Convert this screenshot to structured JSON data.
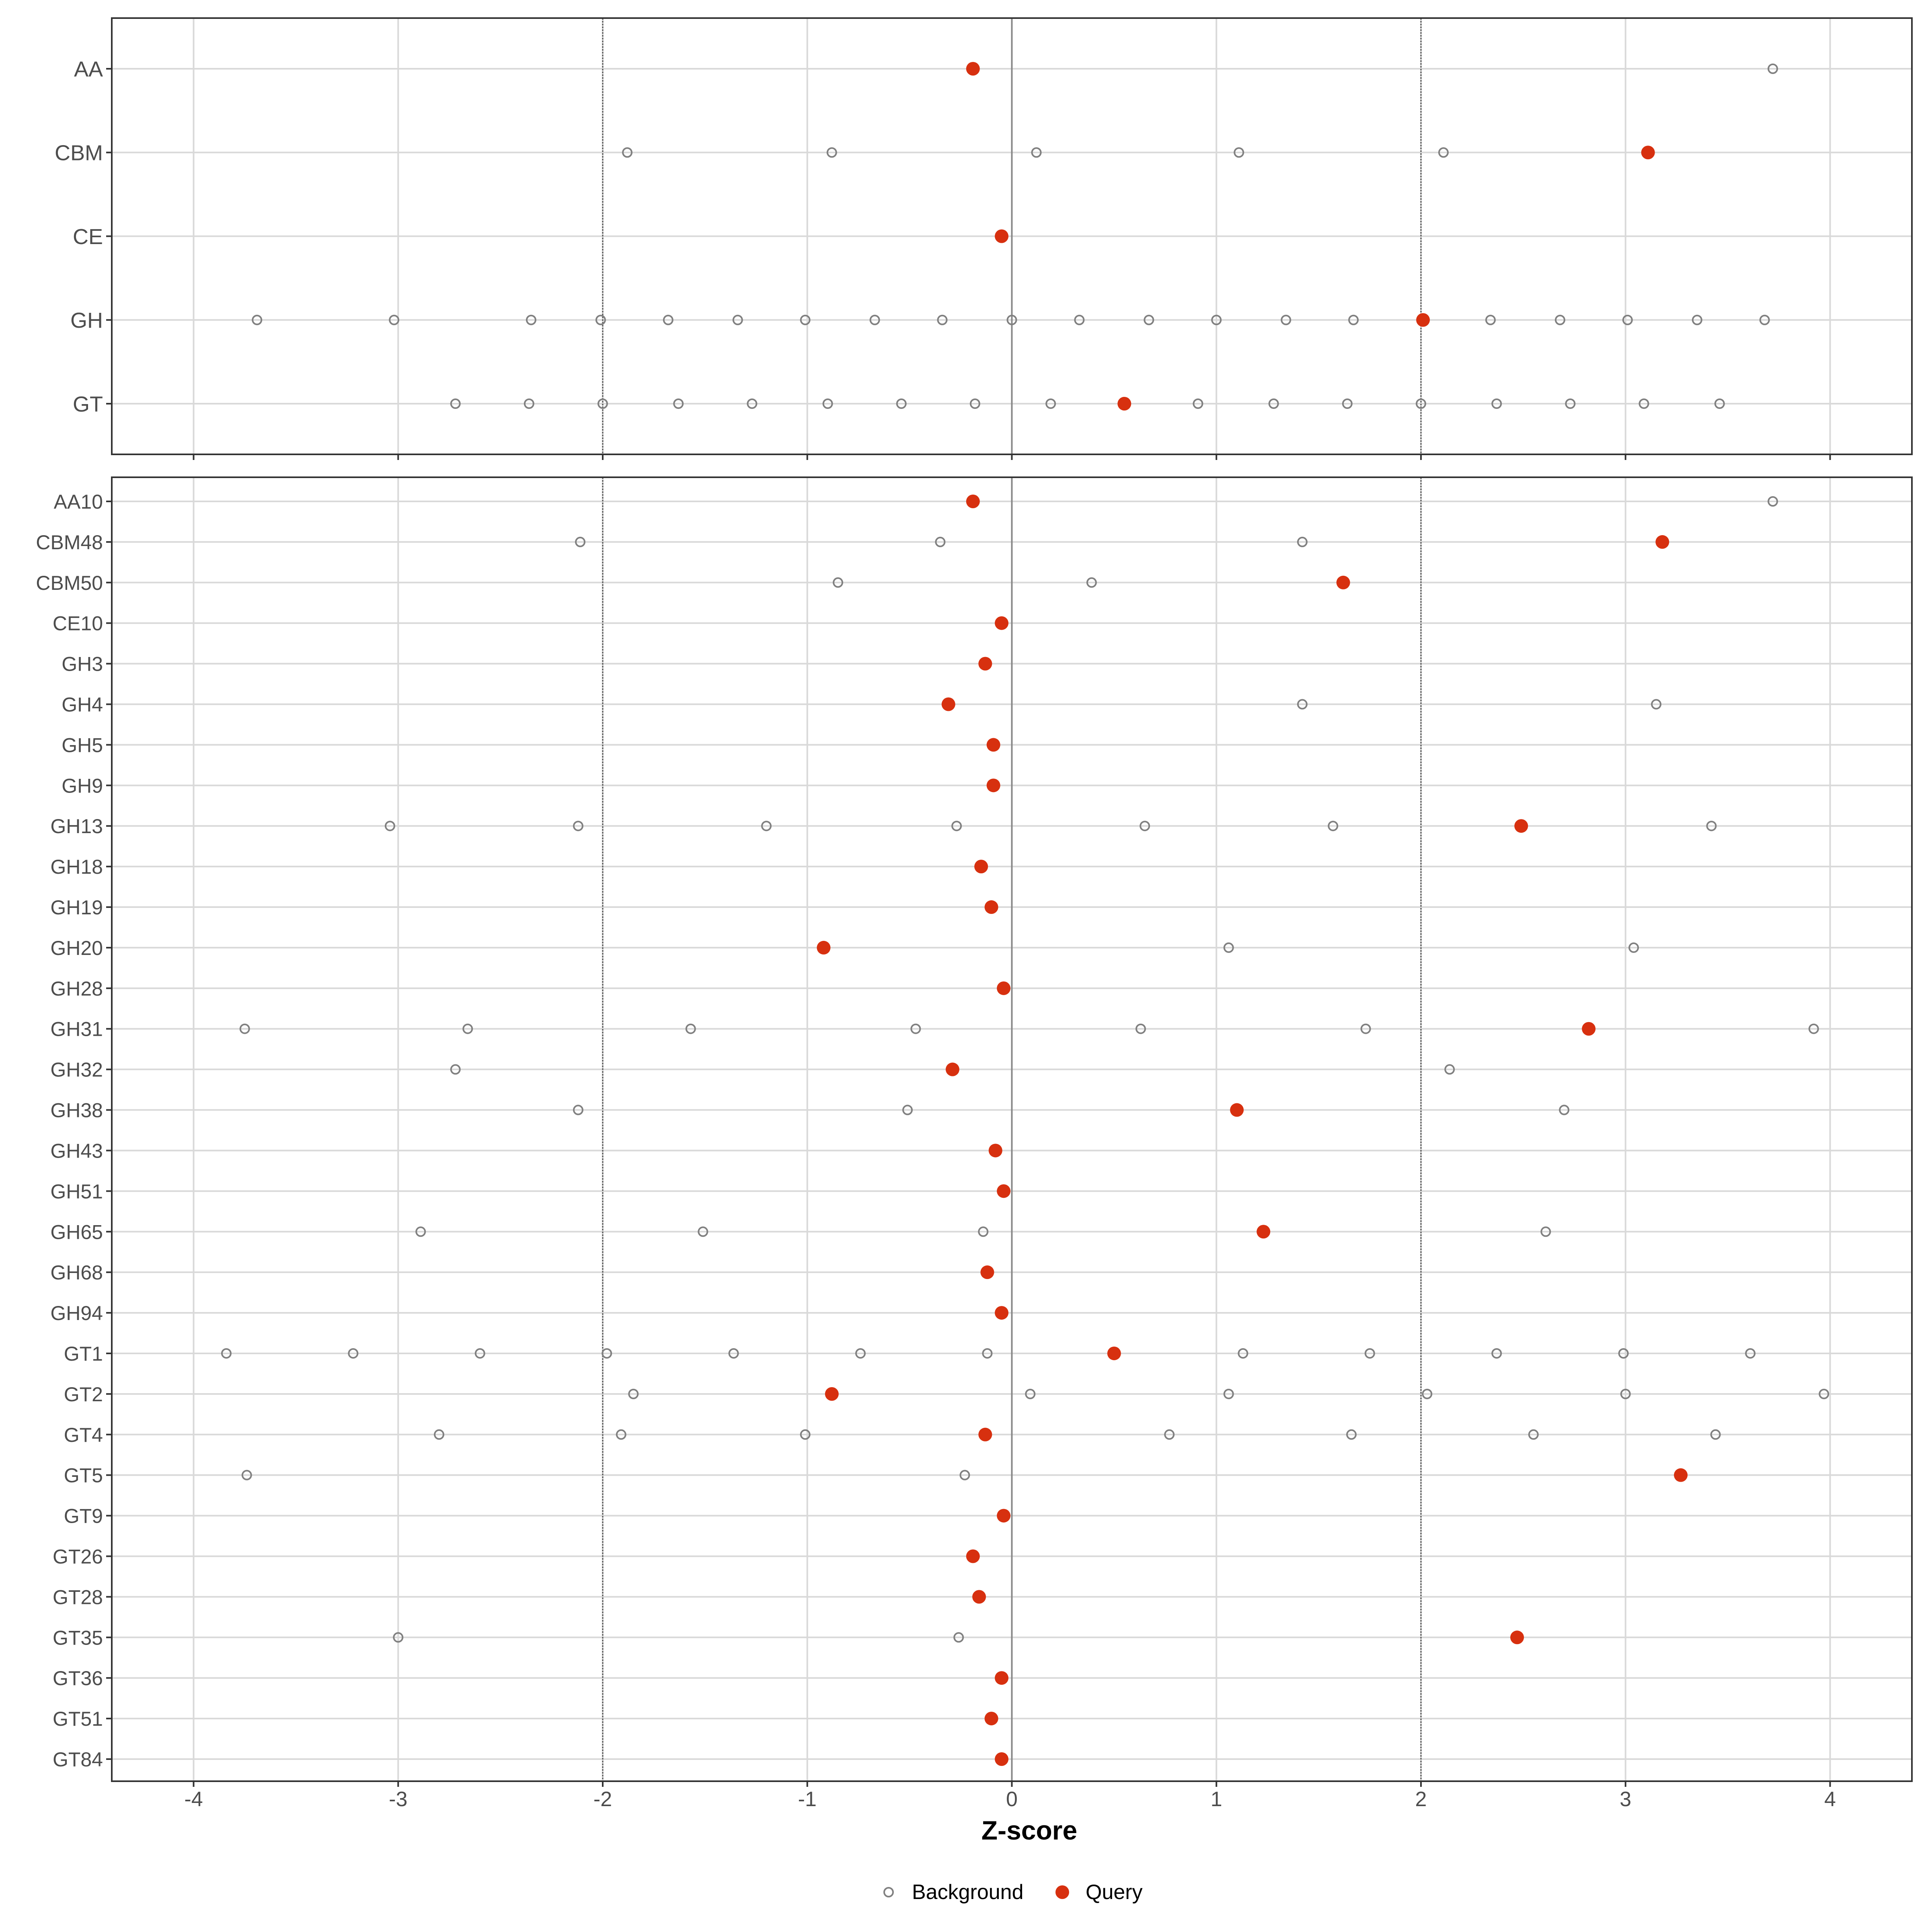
{
  "colors": {
    "query": "#d7300f",
    "background": "#808080",
    "grid": "#d9d9d9",
    "zero_line": "#888888",
    "threshold_line": "#555555"
  },
  "legend": {
    "background_label": "Background",
    "query_label": "Query",
    "position": "bottom"
  },
  "chart_data": [
    {
      "type": "scatter",
      "panel": "top",
      "xlim": [
        -4.4,
        4.4
      ],
      "x_ticks": [
        -4,
        -3,
        -2,
        -1,
        0,
        1,
        2,
        3,
        4
      ],
      "thresholds": [
        -2,
        2
      ],
      "grid": true,
      "categories": [
        "AA",
        "CBM",
        "CE",
        "GH",
        "GT"
      ],
      "background": {
        "AA": [
          3.72
        ],
        "CBM": [
          -1.88,
          -0.88,
          0.12,
          1.11,
          2.11
        ],
        "CE": [],
        "GH": [
          -3.69,
          -3.02,
          -2.35,
          -2.01,
          -1.68,
          -1.34,
          -1.01,
          -0.67,
          -0.34,
          0.0,
          0.33,
          0.67,
          1.0,
          1.34,
          1.67,
          2.34,
          2.68,
          3.01,
          3.35,
          3.68
        ],
        "GT": [
          -2.72,
          -2.36,
          -2.0,
          -1.63,
          -1.27,
          -0.9,
          -0.54,
          -0.18,
          0.19,
          0.91,
          1.28,
          1.64,
          2.0,
          2.37,
          2.73,
          3.09,
          3.46
        ]
      },
      "query": {
        "AA": -0.19,
        "CBM": 3.11,
        "CE": -0.05,
        "GH": 2.01,
        "GT": 0.55
      }
    },
    {
      "type": "scatter",
      "panel": "bottom",
      "xlim": [
        -4.4,
        4.4
      ],
      "x_ticks": [
        -4,
        -3,
        -2,
        -1,
        0,
        1,
        2,
        3,
        4
      ],
      "x_tick_labels": [
        "-4",
        "-3",
        "-2",
        "-1",
        "0",
        "1",
        "2",
        "3",
        "4"
      ],
      "xlabel": "Z-score",
      "thresholds": [
        -2,
        2
      ],
      "grid": true,
      "categories": [
        "AA10",
        "CBM48",
        "CBM50",
        "CE10",
        "GH3",
        "GH4",
        "GH5",
        "GH9",
        "GH13",
        "GH18",
        "GH19",
        "GH20",
        "GH28",
        "GH31",
        "GH32",
        "GH38",
        "GH43",
        "GH51",
        "GH65",
        "GH68",
        "GH94",
        "GT1",
        "GT2",
        "GT4",
        "GT5",
        "GT9",
        "GT26",
        "GT28",
        "GT35",
        "GT36",
        "GT51",
        "GT84"
      ],
      "background": {
        "AA10": [
          3.72
        ],
        "CBM48": [
          -2.11,
          -0.35,
          1.42
        ],
        "CBM50": [
          -0.85,
          0.39
        ],
        "CE10": [],
        "GH3": [],
        "GH4": [
          1.42,
          3.15
        ],
        "GH5": [],
        "GH9": [],
        "GH13": [
          -3.04,
          -2.12,
          -1.2,
          -0.27,
          0.65,
          1.57,
          3.42
        ],
        "GH18": [],
        "GH19": [],
        "GH20": [
          1.06,
          3.04
        ],
        "GH28": [],
        "GH31": [
          -3.75,
          -2.66,
          -1.57,
          -0.47,
          0.63,
          1.73,
          3.92
        ],
        "GH32": [
          -2.72,
          2.14
        ],
        "GH38": [
          -2.12,
          -0.51,
          2.7
        ],
        "GH43": [],
        "GH51": [],
        "GH65": [
          -2.89,
          -1.51,
          -0.14,
          2.61
        ],
        "GH68": [],
        "GH94": [],
        "GT1": [
          -3.84,
          -3.22,
          -2.6,
          -1.98,
          -1.36,
          -0.74,
          -0.12,
          1.13,
          1.75,
          2.37,
          2.99,
          3.61
        ],
        "GT2": [
          -1.85,
          0.09,
          1.06,
          2.03,
          3.0,
          3.97
        ],
        "GT4": [
          -2.8,
          -1.91,
          -1.01,
          0.77,
          1.66,
          2.55,
          3.44
        ],
        "GT5": [
          -3.74,
          -0.23
        ],
        "GT9": [],
        "GT26": [],
        "GT28": [],
        "GT35": [
          -3.0,
          -0.26
        ],
        "GT36": [],
        "GT51": [],
        "GT84": []
      },
      "query": {
        "AA10": -0.19,
        "CBM48": 3.18,
        "CBM50": 1.62,
        "CE10": -0.05,
        "GH3": -0.13,
        "GH4": -0.31,
        "GH5": -0.09,
        "GH9": -0.09,
        "GH13": 2.49,
        "GH18": -0.15,
        "GH19": -0.1,
        "GH20": -0.92,
        "GH28": -0.04,
        "GH31": 2.82,
        "GH32": -0.29,
        "GH38": 1.1,
        "GH43": -0.08,
        "GH51": -0.04,
        "GH65": 1.23,
        "GH68": -0.12,
        "GH94": -0.05,
        "GT1": 0.5,
        "GT2": -0.88,
        "GT4": -0.13,
        "GT5": 3.27,
        "GT9": -0.04,
        "GT26": -0.19,
        "GT28": -0.16,
        "GT35": 2.47,
        "GT36": -0.05,
        "GT51": -0.1,
        "GT84": -0.05
      }
    }
  ]
}
